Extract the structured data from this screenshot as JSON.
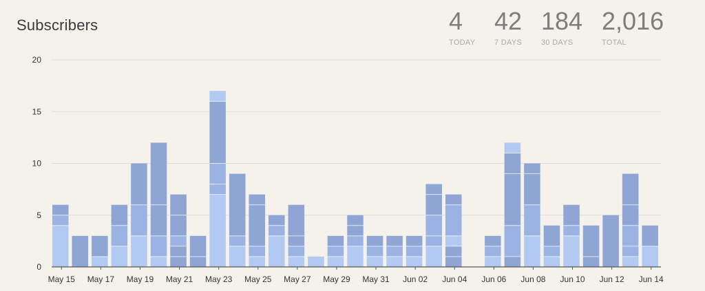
{
  "title": "Subscribers",
  "stats": [
    {
      "value": "4",
      "label": "TODAY"
    },
    {
      "value": "42",
      "label": "7 DAYS"
    },
    {
      "value": "184",
      "label": "30 DAYS"
    },
    {
      "value": "2,016",
      "label": "TOTAL"
    }
  ],
  "colors": {
    "light": "#b2c9f2",
    "mid": "#9bb3e2",
    "dark": "#8fa6d5",
    "grid": "#dcdcdc",
    "axis": "#555555",
    "tick_text": "#333333"
  },
  "chart_data": {
    "type": "bar",
    "stacked": true,
    "ylim": [
      0,
      20
    ],
    "yticks": [
      0,
      5,
      10,
      15,
      20
    ],
    "grid": true,
    "xlabel": "",
    "ylabel": "",
    "categories": [
      "May 15",
      "May 16",
      "May 17",
      "May 18",
      "May 19",
      "May 20",
      "May 21",
      "May 22",
      "May 23",
      "May 24",
      "May 25",
      "May 26",
      "May 27",
      "May 28",
      "May 29",
      "May 30",
      "May 31",
      "Jun 01",
      "Jun 02",
      "Jun 03",
      "Jun 04",
      "Jun 05",
      "Jun 06",
      "Jun 07",
      "Jun 08",
      "Jun 09",
      "Jun 10",
      "Jun 11",
      "Jun 12",
      "Jun 13",
      "Jun 14"
    ],
    "xtick_labels": [
      "May 15",
      "May 17",
      "May 19",
      "May 21",
      "May 23",
      "May 25",
      "May 27",
      "May 29",
      "May 31",
      "Jun 02",
      "Jun 04",
      "Jun 06",
      "Jun 08",
      "Jun 10",
      "Jun 12",
      "Jun 14"
    ],
    "totals": [
      6,
      3,
      3,
      6,
      10,
      12,
      7,
      3,
      17,
      9,
      7,
      5,
      6,
      1,
      3,
      5,
      3,
      3,
      3,
      8,
      7,
      0,
      3,
      12,
      10,
      4,
      6,
      4,
      5,
      9,
      4
    ],
    "segments": [
      [
        {
          "v": 4,
          "c": "light"
        },
        {
          "v": 1,
          "c": "mid"
        },
        {
          "v": 1,
          "c": "dark"
        }
      ],
      [
        {
          "v": 3,
          "c": "dark"
        }
      ],
      [
        {
          "v": 1,
          "c": "light"
        },
        {
          "v": 2,
          "c": "dark"
        }
      ],
      [
        {
          "v": 2,
          "c": "light"
        },
        {
          "v": 2,
          "c": "mid"
        },
        {
          "v": 2,
          "c": "dark"
        }
      ],
      [
        {
          "v": 3,
          "c": "light"
        },
        {
          "v": 3,
          "c": "mid"
        },
        {
          "v": 4,
          "c": "dark"
        }
      ],
      [
        {
          "v": 1,
          "c": "light"
        },
        {
          "v": 2,
          "c": "mid"
        },
        {
          "v": 3,
          "c": "dark"
        },
        {
          "v": 6,
          "c": "dark"
        }
      ],
      [
        {
          "v": 1,
          "c": "dark"
        },
        {
          "v": 1,
          "c": "dark"
        },
        {
          "v": 1,
          "c": "mid"
        },
        {
          "v": 2,
          "c": "dark"
        },
        {
          "v": 2,
          "c": "dark"
        }
      ],
      [
        {
          "v": 1,
          "c": "dark"
        },
        {
          "v": 2,
          "c": "dark"
        }
      ],
      [
        {
          "v": 7,
          "c": "light"
        },
        {
          "v": 1,
          "c": "mid"
        },
        {
          "v": 2,
          "c": "mid"
        },
        {
          "v": 6,
          "c": "dark"
        },
        {
          "v": 1,
          "c": "light"
        }
      ],
      [
        {
          "v": 2,
          "c": "light"
        },
        {
          "v": 1,
          "c": "mid"
        },
        {
          "v": 6,
          "c": "dark"
        }
      ],
      [
        {
          "v": 1,
          "c": "light"
        },
        {
          "v": 1,
          "c": "mid"
        },
        {
          "v": 4,
          "c": "dark"
        },
        {
          "v": 1,
          "c": "dark"
        }
      ],
      [
        {
          "v": 3,
          "c": "light"
        },
        {
          "v": 1,
          "c": "mid"
        },
        {
          "v": 1,
          "c": "dark"
        }
      ],
      [
        {
          "v": 1,
          "c": "light"
        },
        {
          "v": 1,
          "c": "mid"
        },
        {
          "v": 1,
          "c": "dark"
        },
        {
          "v": 3,
          "c": "dark"
        }
      ],
      [
        {
          "v": 1,
          "c": "light"
        }
      ],
      [
        {
          "v": 1,
          "c": "light"
        },
        {
          "v": 1,
          "c": "mid"
        },
        {
          "v": 1,
          "c": "dark"
        }
      ],
      [
        {
          "v": 2,
          "c": "light"
        },
        {
          "v": 1,
          "c": "mid"
        },
        {
          "v": 1,
          "c": "dark"
        },
        {
          "v": 1,
          "c": "dark"
        }
      ],
      [
        {
          "v": 1,
          "c": "light"
        },
        {
          "v": 1,
          "c": "mid"
        },
        {
          "v": 1,
          "c": "dark"
        }
      ],
      [
        {
          "v": 1,
          "c": "light"
        },
        {
          "v": 1,
          "c": "mid"
        },
        {
          "v": 1,
          "c": "dark"
        }
      ],
      [
        {
          "v": 1,
          "c": "light"
        },
        {
          "v": 1,
          "c": "mid"
        },
        {
          "v": 1,
          "c": "dark"
        }
      ],
      [
        {
          "v": 2,
          "c": "light"
        },
        {
          "v": 1,
          "c": "mid"
        },
        {
          "v": 2,
          "c": "mid"
        },
        {
          "v": 2,
          "c": "dark"
        },
        {
          "v": 1,
          "c": "dark"
        }
      ],
      [
        {
          "v": 1,
          "c": "dark"
        },
        {
          "v": 1,
          "c": "dark"
        },
        {
          "v": 1,
          "c": "light"
        },
        {
          "v": 3,
          "c": "mid"
        },
        {
          "v": 1,
          "c": "dark"
        }
      ],
      [],
      [
        {
          "v": 1,
          "c": "light"
        },
        {
          "v": 1,
          "c": "mid"
        },
        {
          "v": 1,
          "c": "dark"
        }
      ],
      [
        {
          "v": 1,
          "c": "dark"
        },
        {
          "v": 3,
          "c": "mid"
        },
        {
          "v": 5,
          "c": "dark"
        },
        {
          "v": 2,
          "c": "dark"
        },
        {
          "v": 1,
          "c": "light"
        }
      ],
      [
        {
          "v": 3,
          "c": "light"
        },
        {
          "v": 3,
          "c": "mid"
        },
        {
          "v": 3,
          "c": "dark"
        },
        {
          "v": 1,
          "c": "dark"
        }
      ],
      [
        {
          "v": 1,
          "c": "light"
        },
        {
          "v": 1,
          "c": "mid"
        },
        {
          "v": 2,
          "c": "dark"
        }
      ],
      [
        {
          "v": 3,
          "c": "light"
        },
        {
          "v": 1,
          "c": "mid"
        },
        {
          "v": 2,
          "c": "dark"
        }
      ],
      [
        {
          "v": 1,
          "c": "dark"
        },
        {
          "v": 3,
          "c": "dark"
        }
      ],
      [
        {
          "v": 5,
          "c": "dark"
        }
      ],
      [
        {
          "v": 1,
          "c": "light"
        },
        {
          "v": 1,
          "c": "mid"
        },
        {
          "v": 2,
          "c": "mid"
        },
        {
          "v": 2,
          "c": "dark"
        },
        {
          "v": 3,
          "c": "dark"
        }
      ],
      [
        {
          "v": 2,
          "c": "light"
        },
        {
          "v": 2,
          "c": "dark"
        }
      ]
    ]
  }
}
